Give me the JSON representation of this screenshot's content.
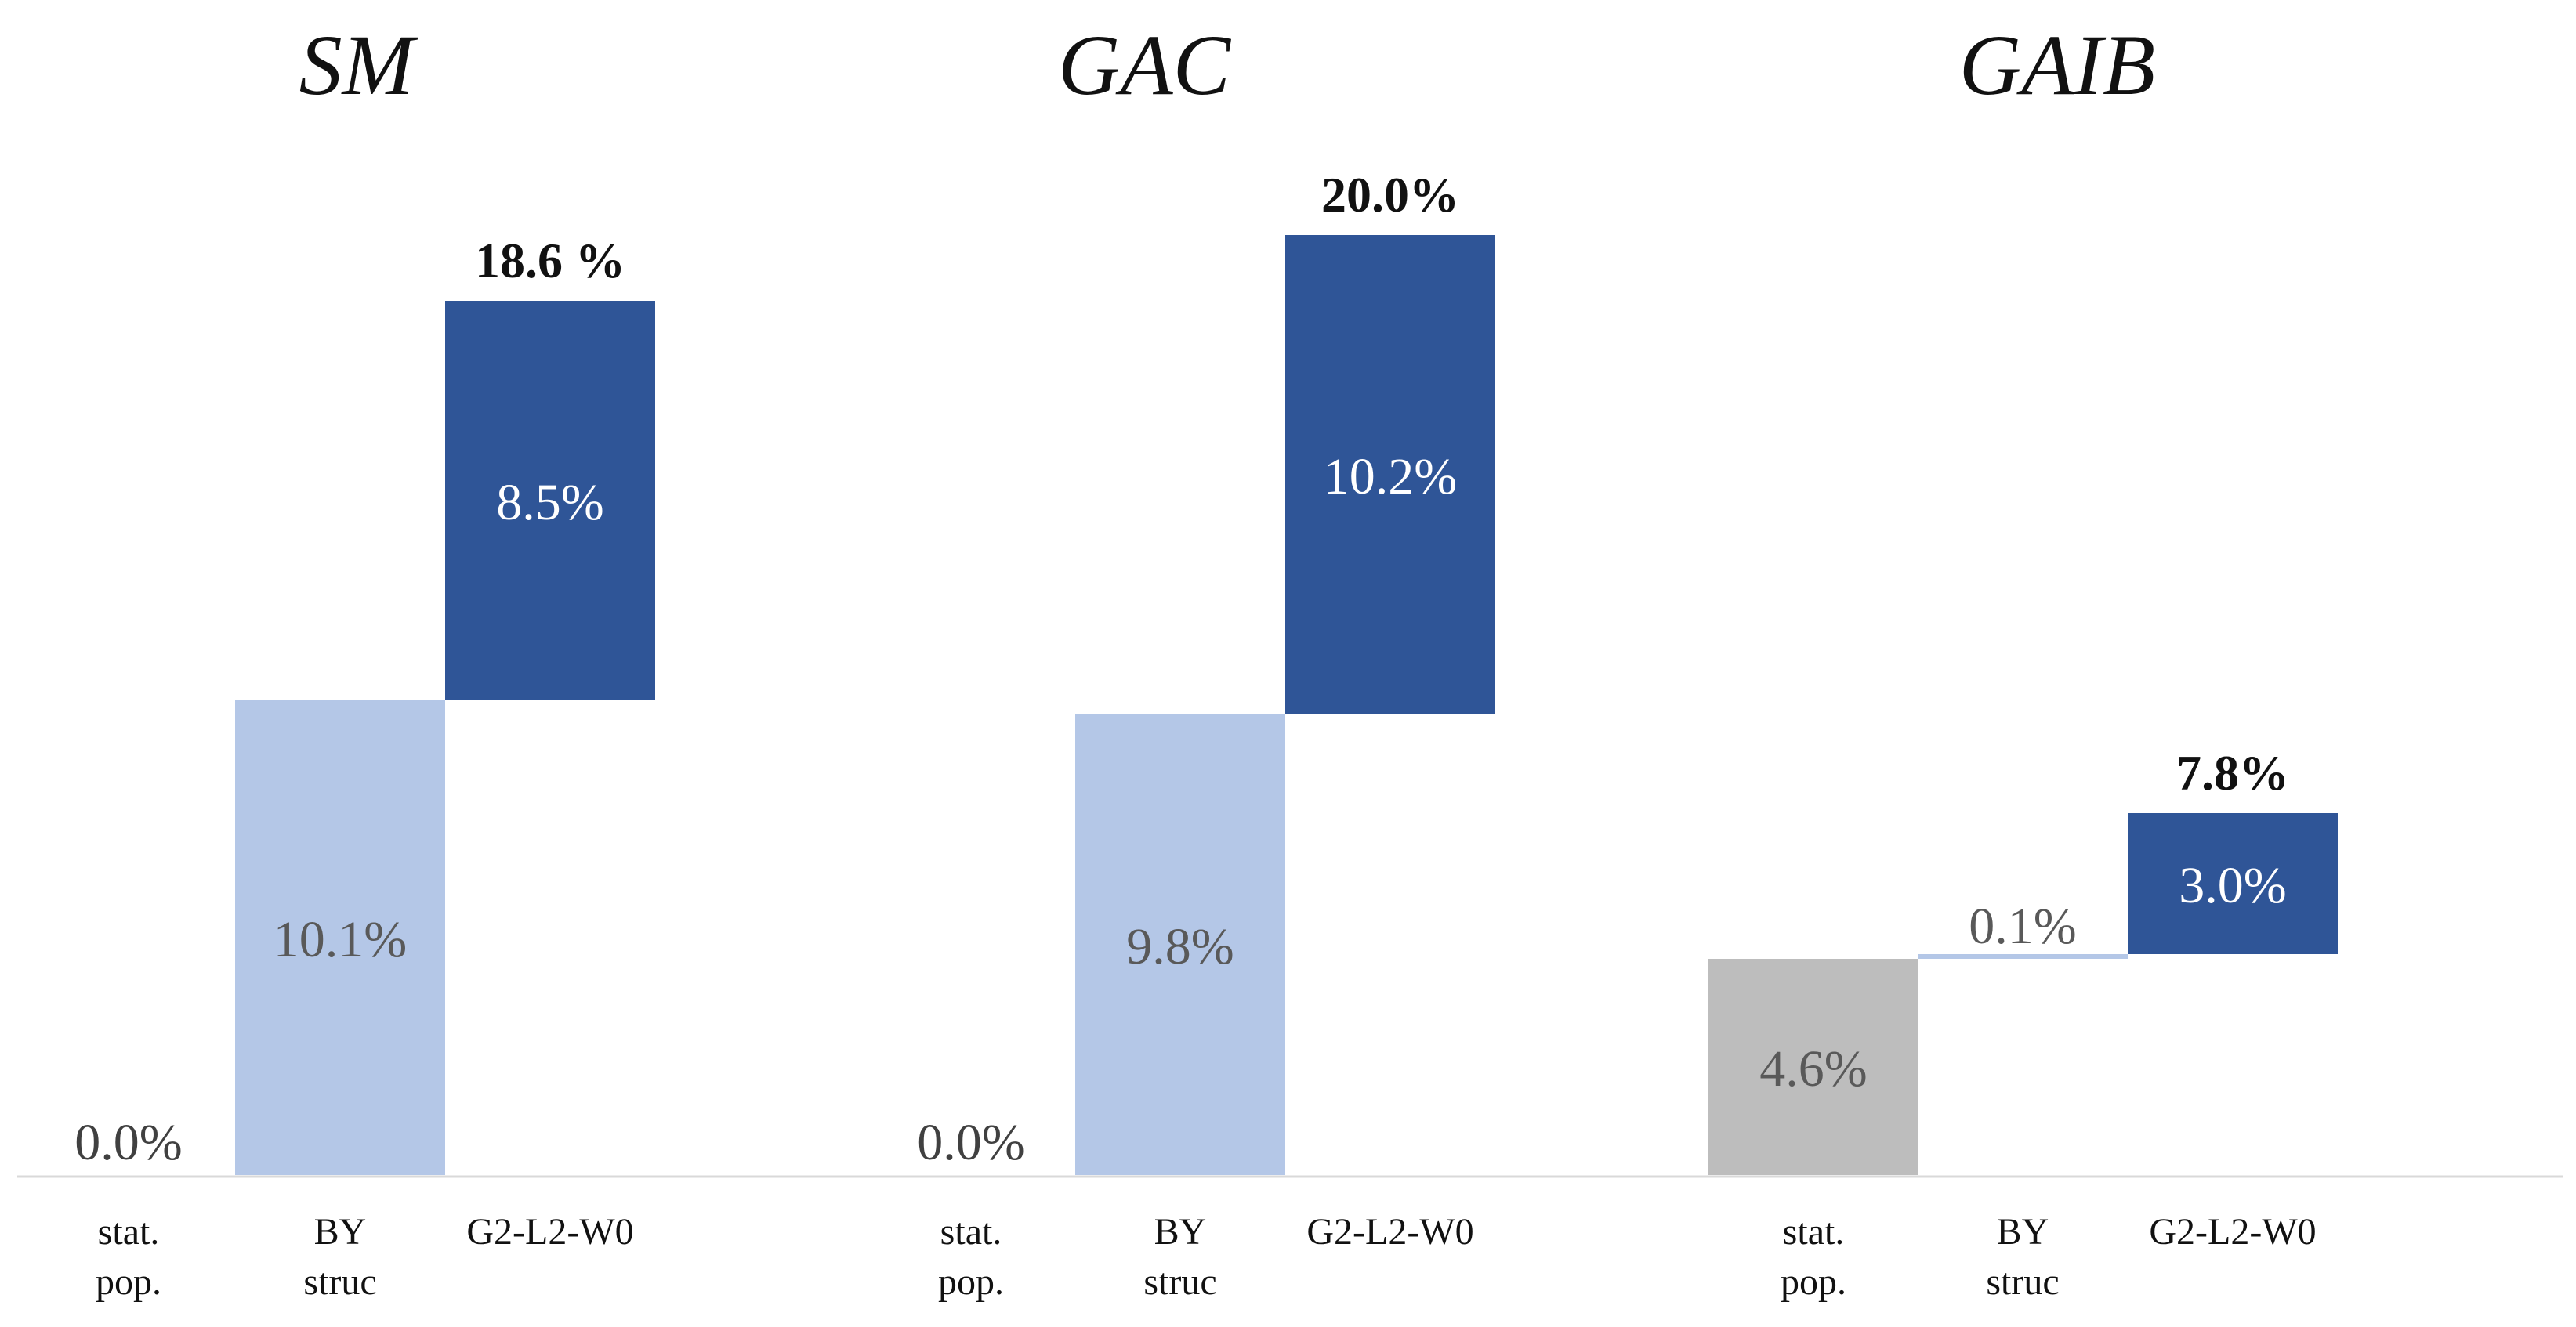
{
  "colors": {
    "baseline": "#bdbdbd",
    "structure": "#b4c7e7",
    "model": "#2f5597",
    "axis": "#d9d9d9",
    "light_text": "#ffffff",
    "dark_text": "#595959",
    "mid_text": "#404040"
  },
  "chart_data": [
    {
      "type": "bar",
      "subtype": "waterfall",
      "title": "SM",
      "categories": [
        {
          "line1": "stat.",
          "line2": "pop."
        },
        {
          "line1": "BY",
          "line2": "struc"
        },
        {
          "line1": "G2-L2-W0",
          "line2": ""
        }
      ],
      "steps": [
        {
          "value": 0.0,
          "label": "0.0%",
          "color_key": "baseline"
        },
        {
          "value": 10.1,
          "label": "10.1%",
          "color_key": "structure"
        },
        {
          "value": 8.5,
          "label": "8.5%",
          "color_key": "model"
        }
      ],
      "total_label": "18.6 %",
      "ylim": [
        0,
        21
      ]
    },
    {
      "type": "bar",
      "subtype": "waterfall",
      "title": "GAC",
      "categories": [
        {
          "line1": "stat.",
          "line2": "pop."
        },
        {
          "line1": "BY",
          "line2": "struc"
        },
        {
          "line1": "G2-L2-W0",
          "line2": ""
        }
      ],
      "steps": [
        {
          "value": 0.0,
          "label": "0.0%",
          "color_key": "baseline"
        },
        {
          "value": 9.8,
          "label": "9.8%",
          "color_key": "structure"
        },
        {
          "value": 10.2,
          "label": "10.2%",
          "color_key": "model"
        }
      ],
      "total_label": "20.0%",
      "ylim": [
        0,
        21
      ]
    },
    {
      "type": "bar",
      "subtype": "waterfall",
      "title": "GAIB",
      "categories": [
        {
          "line1": "stat.",
          "line2": "pop."
        },
        {
          "line1": "BY",
          "line2": "struc"
        },
        {
          "line1": "G2-L2-W0",
          "line2": ""
        }
      ],
      "steps": [
        {
          "value": 4.6,
          "label": "4.6%",
          "color_key": "baseline"
        },
        {
          "value": 0.1,
          "label": "0.1%",
          "color_key": "structure"
        },
        {
          "value": 3.0,
          "label": "3.0%",
          "color_key": "model"
        }
      ],
      "total_label": "7.8%",
      "ylim": [
        0,
        21
      ]
    }
  ]
}
